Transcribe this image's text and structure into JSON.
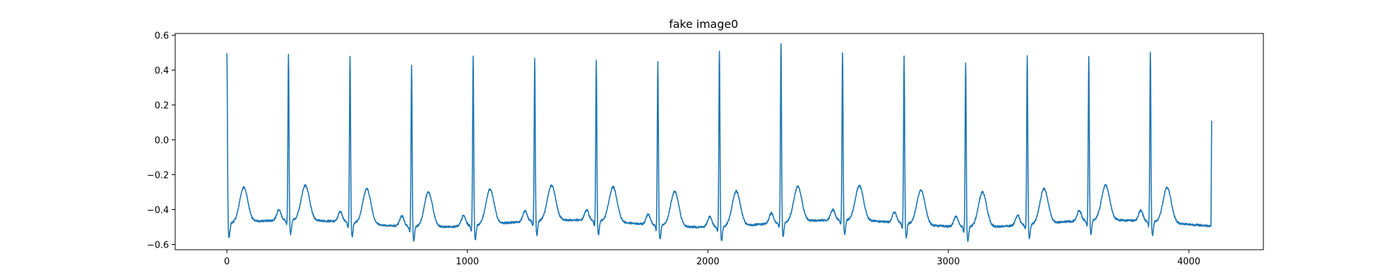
{
  "chart_data": {
    "type": "line",
    "title": "fake image0",
    "xlabel": "",
    "ylabel": "",
    "xlim": [
      -215,
      4310
    ],
    "ylim": [
      -0.63,
      0.61
    ],
    "xticks": [
      0,
      1000,
      2000,
      3000,
      4000
    ],
    "yticks": [
      -0.6,
      -0.4,
      -0.2,
      0.0,
      0.2,
      0.4,
      0.6
    ],
    "ytick_labels": [
      "−0.6",
      "−0.4",
      "−0.2",
      "0.0",
      "0.2",
      "0.4",
      "0.6"
    ],
    "grid": false,
    "legend": "none",
    "series": [
      {
        "color": "#1f77b4",
        "n_points": 4096,
        "beats": [
          {
            "x": 0,
            "peak": 0.5
          },
          {
            "x": 256,
            "peak": 0.47
          },
          {
            "x": 512,
            "peak": 0.48
          },
          {
            "x": 768,
            "peak": 0.45
          },
          {
            "x": 1024,
            "peak": 0.5
          },
          {
            "x": 1280,
            "peak": 0.46
          },
          {
            "x": 1536,
            "peak": 0.44
          },
          {
            "x": 1792,
            "peak": 0.46
          },
          {
            "x": 2048,
            "peak": 0.53
          },
          {
            "x": 2304,
            "peak": 0.55
          },
          {
            "x": 2560,
            "peak": 0.48
          },
          {
            "x": 2816,
            "peak": 0.49
          },
          {
            "x": 3072,
            "peak": 0.47
          },
          {
            "x": 3328,
            "peak": 0.49
          },
          {
            "x": 3584,
            "peak": 0.46
          },
          {
            "x": 3840,
            "peak": 0.5
          }
        ],
        "baseline": -0.48,
        "trough": -0.56,
        "twave_peak": -0.28,
        "end_value": 0.11
      }
    ]
  }
}
